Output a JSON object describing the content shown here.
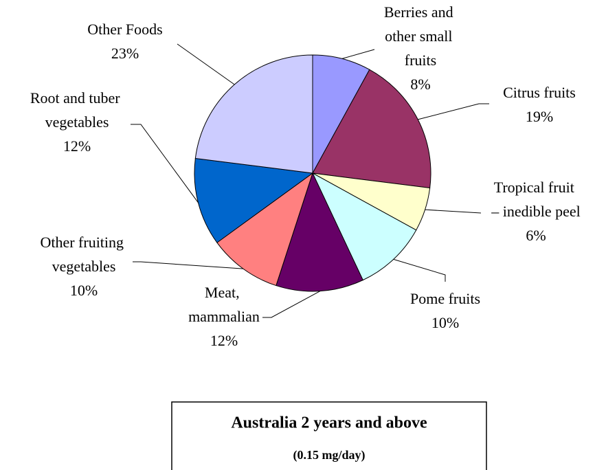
{
  "chart_data": {
    "type": "pie",
    "title": "Australia 2 years and above",
    "subtitle": "(0.15 mg/day)",
    "categories": [
      "Berries and other small fruits",
      "Citrus fruits",
      "Tropical fruit – inedible peel",
      "Pome fruits",
      "Meat, mammalian",
      "Other fruiting vegetables",
      "Root and tuber vegetables",
      "Other Foods"
    ],
    "values": [
      8,
      19,
      6,
      10,
      12,
      10,
      12,
      23
    ],
    "value_labels": [
      "8%",
      "19%",
      "6%",
      "10%",
      "12%",
      "10%",
      "12%",
      "23%"
    ],
    "colors": [
      "#9999ff",
      "#993366",
      "#ffffcc",
      "#ccffff",
      "#660066",
      "#ff8080",
      "#0066cc",
      "#ccccff"
    ]
  }
}
